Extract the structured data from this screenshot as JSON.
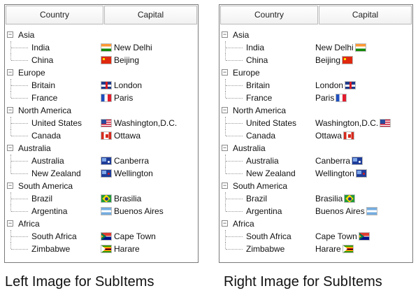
{
  "panels": [
    {
      "header": {
        "country": "Country",
        "capital": "Capital"
      },
      "caption": "Left Image for SubItems",
      "groups": [
        {
          "name": "Asia",
          "expander": "−",
          "items": [
            {
              "country": "India",
              "capital": "New Delhi",
              "flag": "in"
            },
            {
              "country": "China",
              "capital": "Beijing",
              "flag": "cn"
            }
          ]
        },
        {
          "name": "Europe",
          "expander": "−",
          "items": [
            {
              "country": "Britain",
              "capital": "London",
              "flag": "gb"
            },
            {
              "country": "France",
              "capital": "Paris",
              "flag": "fr"
            }
          ]
        },
        {
          "name": "North America",
          "expander": "−",
          "items": [
            {
              "country": "United States",
              "capital": "Washington,D.C.",
              "flag": "us"
            },
            {
              "country": "Canada",
              "capital": "Ottawa",
              "flag": "ca"
            }
          ]
        },
        {
          "name": "Australia",
          "expander": "−",
          "items": [
            {
              "country": "Australia",
              "capital": "Canberra",
              "flag": "au"
            },
            {
              "country": "New Zealand",
              "capital": "Wellington",
              "flag": "nz"
            }
          ]
        },
        {
          "name": "South America",
          "expander": "−",
          "items": [
            {
              "country": "Brazil",
              "capital": "Brasilia",
              "flag": "br"
            },
            {
              "country": "Argentina",
              "capital": "Buenos Aires",
              "flag": "ar"
            }
          ]
        },
        {
          "name": "Africa",
          "expander": "−",
          "items": [
            {
              "country": "South Africa",
              "capital": "Cape Town",
              "flag": "za"
            },
            {
              "country": "Zimbabwe",
              "capital": "Harare",
              "flag": "zw"
            }
          ]
        }
      ]
    },
    {
      "header": {
        "country": "Country",
        "capital": "Capital"
      },
      "caption": "Right Image for SubItems",
      "groups": [
        {
          "name": "Asia",
          "expander": "−",
          "items": [
            {
              "country": "India",
              "capital": "New Delhi",
              "flag": "in"
            },
            {
              "country": "China",
              "capital": "Beijing",
              "flag": "cn"
            }
          ]
        },
        {
          "name": "Europe",
          "expander": "−",
          "items": [
            {
              "country": "Britain",
              "capital": "London",
              "flag": "gb"
            },
            {
              "country": "France",
              "capital": "Paris",
              "flag": "fr"
            }
          ]
        },
        {
          "name": "North America",
          "expander": "−",
          "items": [
            {
              "country": "United States",
              "capital": "Washington,D.C.",
              "flag": "us"
            },
            {
              "country": "Canada",
              "capital": "Ottawa",
              "flag": "ca"
            }
          ]
        },
        {
          "name": "Australia",
          "expander": "−",
          "items": [
            {
              "country": "Australia",
              "capital": "Canberra",
              "flag": "au"
            },
            {
              "country": "New Zealand",
              "capital": "Wellington",
              "flag": "nz"
            }
          ]
        },
        {
          "name": "South America",
          "expander": "−",
          "items": [
            {
              "country": "Brazil",
              "capital": "Brasilia",
              "flag": "br"
            },
            {
              "country": "Argentina",
              "capital": "Buenos Aires",
              "flag": "ar"
            }
          ]
        },
        {
          "name": "Africa",
          "expander": "−",
          "items": [
            {
              "country": "South Africa",
              "capital": "Cape Town",
              "flag": "za"
            },
            {
              "country": "Zimbabwe",
              "capital": "Harare",
              "flag": "zw"
            }
          ]
        }
      ]
    }
  ]
}
